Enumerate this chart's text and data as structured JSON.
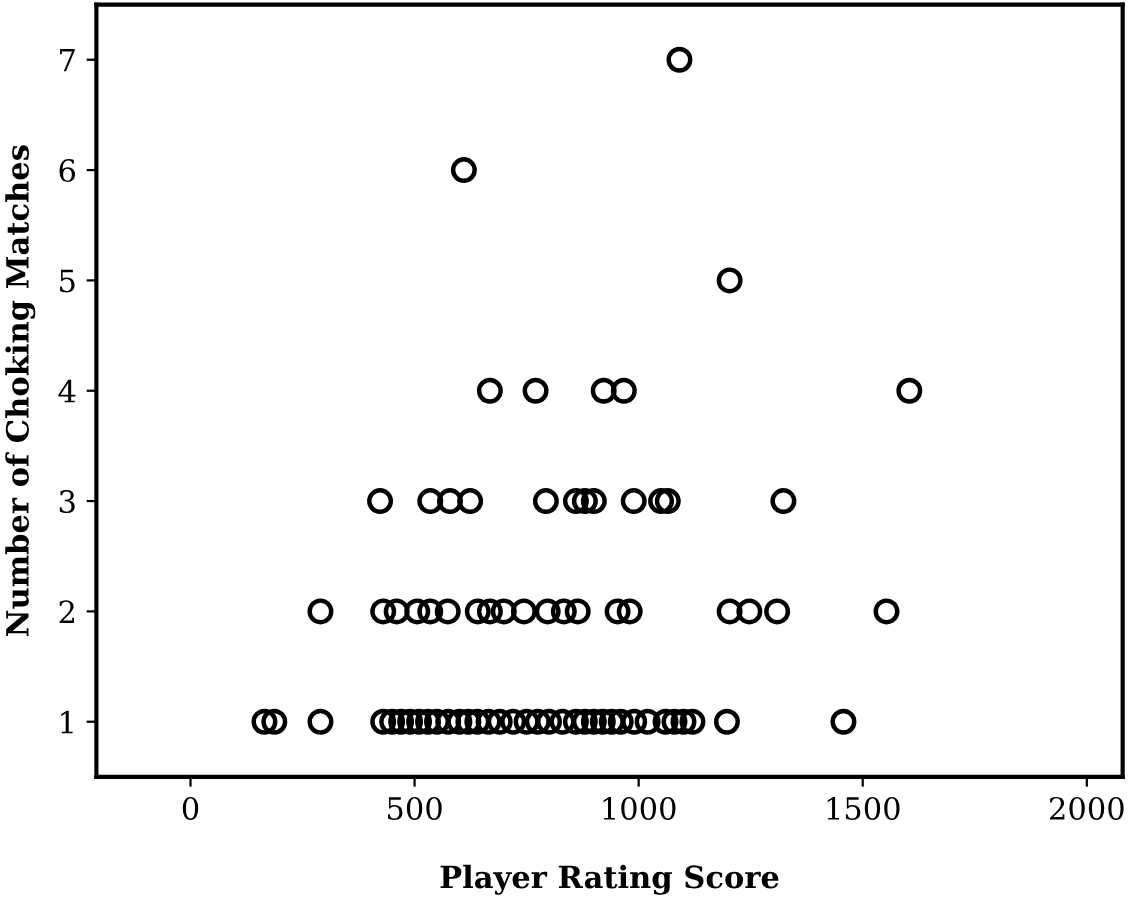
{
  "chart_data": {
    "type": "scatter",
    "xlabel": "Player Rating Score",
    "ylabel": "Number of Choking Matches",
    "xlim": [
      -210,
      2080
    ],
    "ylim": [
      0.5,
      7.5
    ],
    "xticks": [
      0,
      500,
      1000,
      1500,
      2000
    ],
    "yticks": [
      1,
      2,
      3,
      4,
      5,
      6,
      7
    ],
    "grid": false,
    "legend": false,
    "marker": "circle",
    "series": [
      {
        "color": "#000000",
        "x": [
          1091,
          610,
          1203,
          668,
          770,
          922,
          967,
          1604,
          423,
          535,
          579,
          624,
          793,
          860,
          880,
          900,
          989,
          1050,
          1065,
          1323,
          290,
          430,
          460,
          506,
          535,
          574,
          641,
          668,
          699,
          744,
          797,
          833,
          864,
          953,
          980,
          1203,
          1247,
          1309,
          1553,
          165,
          187,
          290,
          430,
          450,
          470,
          490,
          510,
          530,
          550,
          575,
          600,
          620,
          640,
          665,
          690,
          720,
          750,
          775,
          800,
          830,
          860,
          880,
          900,
          920,
          940,
          960,
          990,
          1020,
          1060,
          1080,
          1100,
          1120,
          1197,
          1457
        ],
        "values": [
          7,
          6,
          5,
          4,
          4,
          4,
          4,
          4,
          3,
          3,
          3,
          3,
          3,
          3,
          3,
          3,
          3,
          3,
          3,
          3,
          2,
          2,
          2,
          2,
          2,
          2,
          2,
          2,
          2,
          2,
          2,
          2,
          2,
          2,
          2,
          2,
          2,
          2,
          2,
          1,
          1,
          1,
          1,
          1,
          1,
          1,
          1,
          1,
          1,
          1,
          1,
          1,
          1,
          1,
          1,
          1,
          1,
          1,
          1,
          1,
          1,
          1,
          1,
          1,
          1,
          1,
          1,
          1,
          1,
          1,
          1,
          1,
          1,
          1
        ]
      }
    ]
  }
}
